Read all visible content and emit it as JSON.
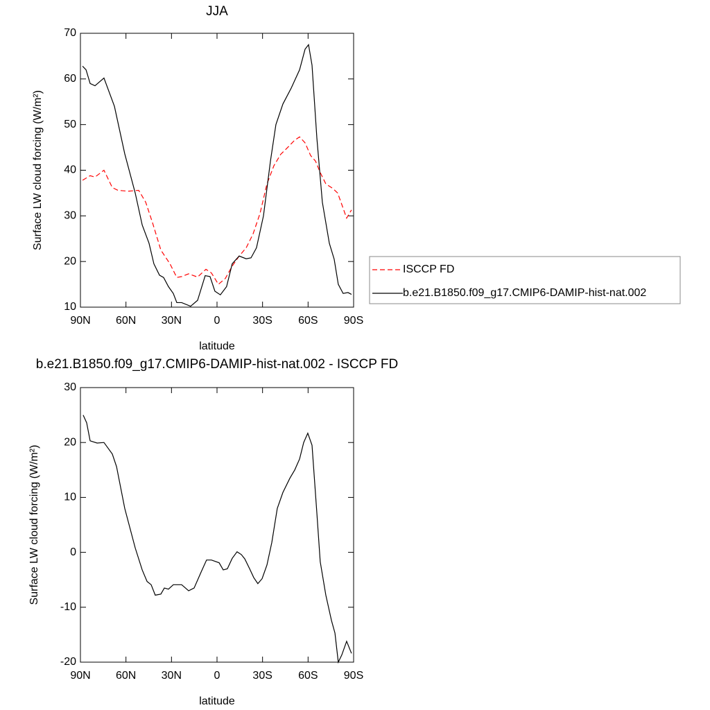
{
  "chart_data": [
    {
      "type": "line",
      "title": "JJA",
      "xlabel": "latitude",
      "ylabel": "Surface LW cloud forcing (W/m²)",
      "xlim": [
        90,
        -90
      ],
      "ylim": [
        10,
        70
      ],
      "xticks": [
        {
          "value": 90,
          "label": "90N"
        },
        {
          "value": 60,
          "label": "60N"
        },
        {
          "value": 30,
          "label": "30N"
        },
        0,
        {
          "value": -30,
          "label": "30S"
        },
        {
          "value": -60,
          "label": "60S"
        },
        {
          "value": -90,
          "label": "90S"
        }
      ],
      "yticks": [
        10,
        20,
        30,
        40,
        50,
        60,
        70
      ],
      "legend": "right",
      "series": [
        {
          "name": "ISCCP FD",
          "color": "#ff0000",
          "dash": true,
          "x": [
            88.6,
            83.6,
            80.4,
            74.5,
            69,
            65.3,
            58.5,
            51.6,
            47,
            42.5,
            37,
            31,
            26.5,
            23.3,
            18.7,
            12.8,
            7.3,
            3.7,
            -0.9,
            -5.5,
            -10,
            -14.6,
            -19.2,
            -23.7,
            -28.3,
            -32.9,
            -37.5,
            -42,
            -46.6,
            -51.2,
            -54.4,
            -58,
            -61.7,
            -64.9,
            -68,
            -71.7,
            -76.3,
            -79.5,
            -82.2,
            -85.4,
            -88.6
          ],
          "values": [
            37.8,
            38.8,
            38.5,
            40,
            36.2,
            35.6,
            35.4,
            35.6,
            33,
            28.5,
            22.5,
            19.5,
            16.5,
            16.7,
            17.3,
            16.6,
            18.3,
            17.5,
            15,
            16.3,
            19,
            21.2,
            23,
            26,
            30.5,
            37,
            41,
            43.5,
            45,
            46.6,
            47.3,
            46,
            43.2,
            42,
            39.5,
            37,
            36,
            35,
            32.5,
            29.5,
            31.3
          ]
        },
        {
          "name": "b.e21.B1850.f09_g17.CMIP6-DAMIP-hist-nat.002",
          "color": "#000000",
          "dash": false,
          "x": [
            88.6,
            86.3,
            83.6,
            80.4,
            74.5,
            67.6,
            60.8,
            53.9,
            49.3,
            44.8,
            41.6,
            37.9,
            35.2,
            32,
            28.8,
            26.5,
            23.3,
            17.4,
            12.8,
            7.8,
            4.6,
            1.4,
            -2.2,
            -6.3,
            -10,
            -14.6,
            -19.2,
            -22.4,
            -26,
            -30.6,
            -35.2,
            -38.8,
            -43.4,
            -48.9,
            -54.4,
            -58,
            -60.3,
            -62.6,
            -65.8,
            -69.4,
            -74,
            -77.2,
            -79.9,
            -83.1,
            -86.3,
            -88.6
          ],
          "values": [
            62.8,
            62,
            59,
            58.5,
            60.2,
            54,
            43.6,
            35,
            28,
            24,
            19.5,
            17,
            16.5,
            14.5,
            13,
            11,
            11,
            10.2,
            11.5,
            16.9,
            16.7,
            13.5,
            12.7,
            14.5,
            19.5,
            21.2,
            20.6,
            20.8,
            23,
            30,
            42,
            50,
            54.5,
            58,
            62,
            66.5,
            67.5,
            63,
            47,
            33,
            24,
            20.5,
            15,
            13,
            13.2,
            12.8
          ]
        }
      ]
    },
    {
      "type": "line",
      "title": "b.e21.B1850.f09_g17.CMIP6-DAMIP-hist-nat.002 - ISCCP FD",
      "xlabel": "latitude",
      "ylabel": "Surface LW cloud forcing (W/m²)",
      "xlim": [
        90,
        -90
      ],
      "ylim": [
        -20,
        30
      ],
      "xticks": [
        {
          "value": 90,
          "label": "90N"
        },
        {
          "value": 60,
          "label": "60N"
        },
        {
          "value": 30,
          "label": "30N"
        },
        0,
        {
          "value": -30,
          "label": "30S"
        },
        {
          "value": -60,
          "label": "60S"
        },
        {
          "value": -90,
          "label": "90S"
        }
      ],
      "yticks": [
        -20,
        -10,
        0,
        10,
        20,
        30
      ],
      "series": [
        {
          "color": "#000000",
          "dash": false,
          "x": [
            88.2,
            85.9,
            83.6,
            79,
            74.5,
            69,
            66.2,
            60.8,
            53.9,
            49.3,
            46.1,
            43.4,
            40.7,
            37,
            34.7,
            32,
            28.8,
            23.3,
            18.7,
            15.1,
            10.5,
            6.9,
            3.7,
            -1.4,
            -4.1,
            -6.8,
            -10,
            -13.2,
            -16,
            -18.3,
            -21.5,
            -24.2,
            -26.9,
            -29.7,
            -32.9,
            -36.1,
            -39.7,
            -43.4,
            -48,
            -51.2,
            -54.4,
            -57.1,
            -59.8,
            -62.6,
            -65.8,
            -68,
            -71.7,
            -75.4,
            -77.7,
            -79.9,
            -82.2,
            -85.4,
            -88.6
          ],
          "values": [
            25,
            23.6,
            20.3,
            19.9,
            20,
            17.9,
            15.6,
            8,
            0.8,
            -3.2,
            -5.3,
            -5.9,
            -7.8,
            -7.6,
            -6.5,
            -6.7,
            -5.9,
            -5.9,
            -7,
            -6.5,
            -3.6,
            -1.4,
            -1.4,
            -1.9,
            -3.2,
            -3,
            -1.1,
            0.1,
            -0.4,
            -1.2,
            -3,
            -4.6,
            -5.7,
            -4.8,
            -2.3,
            1.8,
            8,
            10.9,
            13.5,
            15,
            17,
            20,
            21.7,
            19.5,
            7.1,
            -1.7,
            -7.8,
            -12.4,
            -14.7,
            -20,
            -18.7,
            -16.2,
            -18.4
          ]
        }
      ]
    }
  ]
}
